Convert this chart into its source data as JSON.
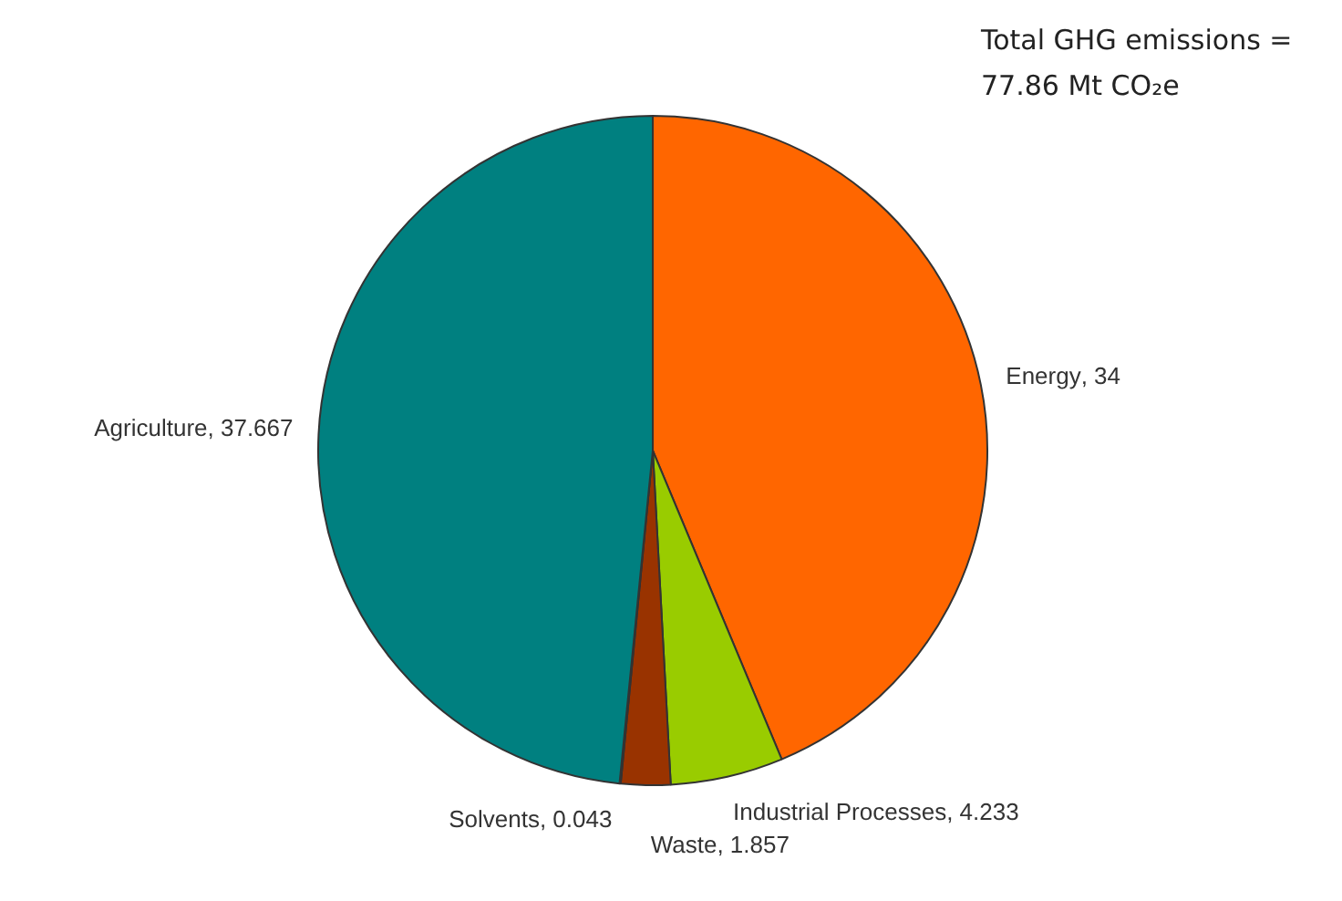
{
  "chart_data": {
    "type": "pie",
    "categories": [
      "Energy",
      "Industrial Processes",
      "Waste",
      "Solvents",
      "Agriculture"
    ],
    "values": [
      34,
      4.233,
      1.857,
      0.043,
      37.667
    ],
    "colors": [
      "#ff6600",
      "#99cc00",
      "#993300",
      "#993366",
      "#008080"
    ],
    "value_labels": [
      ", 34",
      ", 4.233",
      ", 1.857",
      ", 0.043",
      ", 37.667"
    ],
    "legend": false,
    "annotations": [
      "Total GHG emissions = 77.86 Mt CO₂e"
    ]
  }
}
